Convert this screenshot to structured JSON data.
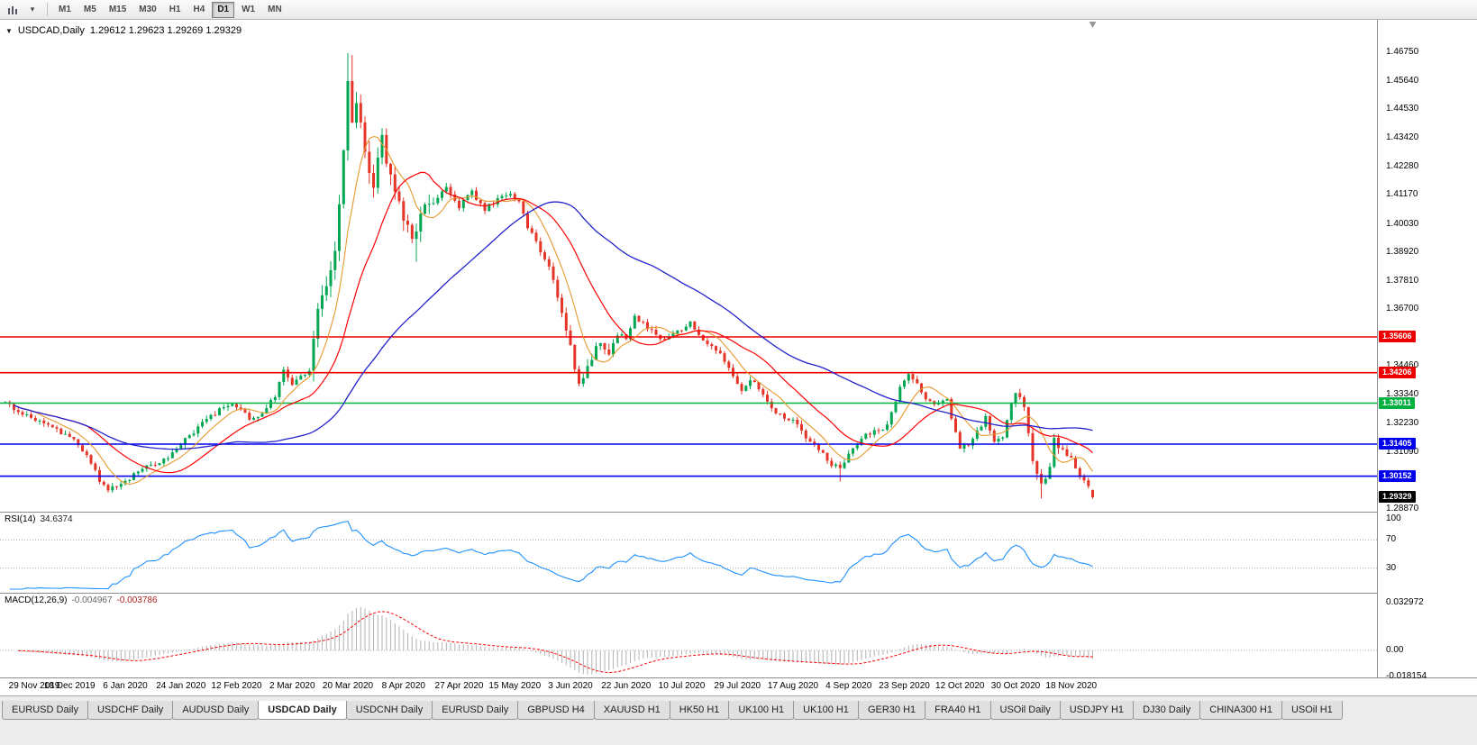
{
  "icons": {
    "collapse": "▼",
    "caret": "▾"
  },
  "toolbar": {
    "timeframes": [
      "M1",
      "M5",
      "M15",
      "M30",
      "H1",
      "H4",
      "D1",
      "W1",
      "MN"
    ],
    "active_timeframe": "D1"
  },
  "chart_title": {
    "symbol": "USDCAD,Daily",
    "ohlc": "1.29612 1.29623 1.29269 1.29329"
  },
  "chart_data": {
    "type": "candlestick",
    "symbol": "USDCAD",
    "timeframe": "Daily",
    "last_candle": {
      "open": 1.29612,
      "high": 1.29623,
      "low": 1.29269,
      "close": 1.29329
    },
    "price_range": [
      1.2876,
      1.4732
    ],
    "price_axis_ticks": [
      "1.46750",
      "1.45640",
      "1.44530",
      "1.43420",
      "1.42280",
      "1.41170",
      "1.40030",
      "1.38920",
      "1.37810",
      "1.36700",
      "1.34460",
      "1.33340",
      "1.32230",
      "1.31090",
      "1.28870"
    ],
    "hlines": [
      {
        "price": 1.35606,
        "label": "1.35606",
        "color": "#ee0000"
      },
      {
        "price": 1.34206,
        "label": "1.34206",
        "color": "#ee0000"
      },
      {
        "price": 1.33011,
        "label": "1.33011",
        "color": "#00b140"
      },
      {
        "price": 1.31405,
        "label": "1.31405",
        "color": "#0000ee"
      },
      {
        "price": 1.30152,
        "label": "1.30152",
        "color": "#0000ee"
      }
    ],
    "current_price_label": {
      "price": 1.29329,
      "label": "1.29329",
      "color": "#000000"
    },
    "x_labels": [
      "29 Nov 2019",
      "18 Dec 2019",
      "6 Jan 2020",
      "24 Jan 2020",
      "12 Feb 2020",
      "2 Mar 2020",
      "20 Mar 2020",
      "8 Apr 2020",
      "27 Apr 2020",
      "15 May 2020",
      "3 Jun 2020",
      "22 Jun 2020",
      "10 Jul 2020",
      "29 Jul 2020",
      "17 Aug 2020",
      "4 Sep 2020",
      "23 Sep 2020",
      "12 Oct 2020",
      "30 Oct 2020",
      "18 Nov 2020"
    ],
    "first_label_index": 2,
    "label_step": 13,
    "moving_average_periods": {
      "fast": 8,
      "mid": 20,
      "slow": 55
    },
    "colors": {
      "up": "#00a651",
      "down": "#e53528",
      "ma_fast": "#e6992e",
      "ma_mid": "#ff0000",
      "ma_slow": "#2222cc",
      "rsi": "#1e90ff",
      "macd_hist": "#b8b8b8",
      "macd_signal": "#ff0000"
    },
    "close_anchors": [
      [
        0,
        1.3305
      ],
      [
        3,
        1.3272
      ],
      [
        8,
        1.3228
      ],
      [
        12,
        1.3195
      ],
      [
        15,
        1.3168
      ],
      [
        18,
        1.312
      ],
      [
        20,
        1.306
      ],
      [
        22,
        1.3
      ],
      [
        24,
        1.2968
      ],
      [
        26,
        1.2972
      ],
      [
        28,
        1.2992
      ],
      [
        31,
        1.3042
      ],
      [
        34,
        1.306
      ],
      [
        38,
        1.3088
      ],
      [
        41,
        1.314
      ],
      [
        45,
        1.3205
      ],
      [
        49,
        1.326
      ],
      [
        52,
        1.3295
      ],
      [
        54,
        1.3288
      ],
      [
        57,
        1.3242
      ],
      [
        60,
        1.3258
      ],
      [
        63,
        1.333
      ],
      [
        65,
        1.3438
      ],
      [
        67,
        1.3378
      ],
      [
        69,
        1.3405
      ],
      [
        71,
        1.3425
      ],
      [
        73,
        1.3655
      ],
      [
        75,
        1.3745
      ],
      [
        77,
        1.3888
      ],
      [
        78,
        1.4065
      ],
      [
        79,
        1.4275
      ],
      [
        80,
        1.456
      ],
      [
        81,
        1.442
      ],
      [
        82,
        1.449
      ],
      [
        84,
        1.4285
      ],
      [
        86,
        1.4155
      ],
      [
        88,
        1.434
      ],
      [
        90,
        1.4185
      ],
      [
        92,
        1.408
      ],
      [
        93,
        1.4018
      ],
      [
        95,
        1.3942
      ],
      [
        97,
        1.4048
      ],
      [
        100,
        1.4095
      ],
      [
        103,
        1.4142
      ],
      [
        106,
        1.4072
      ],
      [
        109,
        1.4128
      ],
      [
        112,
        1.4058
      ],
      [
        115,
        1.4102
      ],
      [
        118,
        1.4122
      ],
      [
        120,
        1.4098
      ],
      [
        122,
        1.3995
      ],
      [
        125,
        1.3898
      ],
      [
        128,
        1.3792
      ],
      [
        130,
        1.3665
      ],
      [
        132,
        1.3525
      ],
      [
        134,
        1.3372
      ],
      [
        136,
        1.3448
      ],
      [
        139,
        1.3542
      ],
      [
        141,
        1.3505
      ],
      [
        143,
        1.3572
      ],
      [
        145,
        1.3552
      ],
      [
        147,
        1.3642
      ],
      [
        150,
        1.3598
      ],
      [
        153,
        1.3552
      ],
      [
        156,
        1.3578
      ],
      [
        158,
        1.3595
      ],
      [
        160,
        1.3618
      ],
      [
        163,
        1.3548
      ],
      [
        166,
        1.3512
      ],
      [
        169,
        1.3438
      ],
      [
        172,
        1.3352
      ],
      [
        174,
        1.3398
      ],
      [
        177,
        1.3335
      ],
      [
        180,
        1.3262
      ],
      [
        182,
        1.3242
      ],
      [
        184,
        1.3228
      ],
      [
        187,
        1.3172
      ],
      [
        190,
        1.3118
      ],
      [
        193,
        1.3062
      ],
      [
        195,
        1.3042
      ],
      [
        197,
        1.3098
      ],
      [
        200,
        1.3162
      ],
      [
        203,
        1.3198
      ],
      [
        205,
        1.3188
      ],
      [
        207,
        1.3258
      ],
      [
        209,
        1.3362
      ],
      [
        211,
        1.3415
      ],
      [
        213,
        1.3372
      ],
      [
        215,
        1.3322
      ],
      [
        218,
        1.3292
      ],
      [
        220,
        1.3315
      ],
      [
        222,
        1.3185
      ],
      [
        223,
        1.3128
      ],
      [
        225,
        1.3142
      ],
      [
        228,
        1.3208
      ],
      [
        229,
        1.3245
      ],
      [
        231,
        1.3148
      ],
      [
        233,
        1.3175
      ],
      [
        235,
        1.3302
      ],
      [
        236,
        1.3355
      ],
      [
        238,
        1.3282
      ],
      [
        240,
        1.307
      ],
      [
        242,
        1.2978
      ],
      [
        244,
        1.3062
      ],
      [
        245,
        1.3155
      ],
      [
        247,
        1.3122
      ],
      [
        249,
        1.3082
      ],
      [
        251,
        1.3018
      ],
      [
        253,
        1.2968
      ],
      [
        254,
        1.2933
      ]
    ],
    "wick_extremes": [
      {
        "index": 80,
        "high": 1.4672
      },
      {
        "index": 81,
        "high": 1.4665
      },
      {
        "index": 96,
        "low": 1.3855
      },
      {
        "index": 195,
        "low": 1.2994
      },
      {
        "index": 242,
        "low": 1.2928
      }
    ]
  },
  "rsi_panel": {
    "label": "RSI(14)",
    "value": "34.6374",
    "period": 14,
    "levels": [
      {
        "value": 100,
        "label": "100"
      },
      {
        "value": 70,
        "label": "70"
      },
      {
        "value": 30,
        "label": "30"
      }
    ]
  },
  "macd_panel": {
    "label": "MACD(12,26,9)",
    "main_value": "-0.004967",
    "signal_value": "-0.003786",
    "fast": 12,
    "slow": 26,
    "signal": 9,
    "axis": [
      {
        "value": 0.032972,
        "label": "0.032972"
      },
      {
        "value": 0,
        "label": "0.00"
      },
      {
        "value": -0.018154,
        "label": "-0.018154"
      }
    ]
  },
  "tabs": {
    "items": [
      "EURUSD Daily",
      "USDCHF Daily",
      "AUDUSD Daily",
      "USDCAD Daily",
      "USDCNH Daily",
      "EURUSD Daily",
      "GBPUSD H4",
      "XAUUSD H1",
      "HK50 H1",
      "UK100 H1",
      "UK100 H1",
      "GER30 H1",
      "FRA40 H1",
      "USOil Daily",
      "USDJPY H1",
      "DJ30 Daily",
      "CHINA300 H1",
      "USOil H1"
    ],
    "active_index": 3
  }
}
